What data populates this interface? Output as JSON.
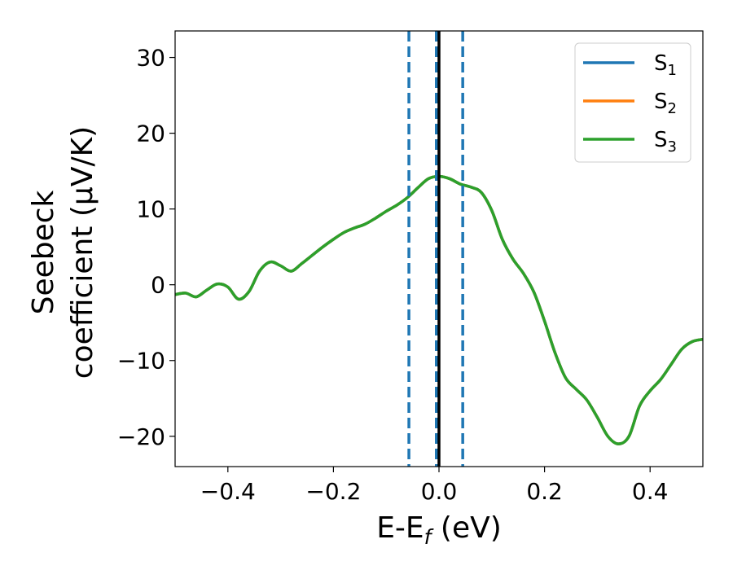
{
  "chart_data": {
    "type": "line",
    "xlabel": {
      "text": "E-E",
      "sub": "f",
      "suffix": " (eV)"
    },
    "ylabel": {
      "line1": "Seebeck",
      "line2": "coefficient  (μV/K)"
    },
    "xlim": [
      -0.5,
      0.5
    ],
    "ylim": [
      -24,
      33.5
    ],
    "xticks": [
      -0.4,
      -0.2,
      0.0,
      0.2,
      0.4
    ],
    "xtick_labels": [
      "−0.4",
      "−0.2",
      "0.0",
      "0.2",
      "0.4"
    ],
    "yticks": [
      30,
      20,
      10,
      0,
      -10,
      -20
    ],
    "ytick_labels": [
      "30",
      "20",
      "10",
      "0",
      "−10",
      "−20"
    ],
    "grid": false,
    "legend_position": "top-right",
    "x": [
      -0.5,
      -0.48,
      -0.46,
      -0.44,
      -0.42,
      -0.4,
      -0.38,
      -0.36,
      -0.34,
      -0.32,
      -0.3,
      -0.28,
      -0.26,
      -0.24,
      -0.22,
      -0.2,
      -0.18,
      -0.16,
      -0.14,
      -0.12,
      -0.1,
      -0.08,
      -0.06,
      -0.04,
      -0.02,
      0.0,
      0.02,
      0.04,
      0.06,
      0.08,
      0.1,
      0.12,
      0.14,
      0.16,
      0.18,
      0.2,
      0.22,
      0.24,
      0.26,
      0.28,
      0.3,
      0.32,
      0.34,
      0.36,
      0.38,
      0.4,
      0.42,
      0.44,
      0.46,
      0.48,
      0.5
    ],
    "series": [
      {
        "name": "S",
        "sub": "1",
        "color": "#1f77b4",
        "values": [
          -1.3,
          -1.1,
          -1.6,
          -0.7,
          0.1,
          -0.3,
          -1.9,
          -0.9,
          1.8,
          3.0,
          2.5,
          1.8,
          2.8,
          3.9,
          5.0,
          6.0,
          6.9,
          7.5,
          8.0,
          8.8,
          9.7,
          10.5,
          11.5,
          12.8,
          14.0,
          14.3,
          14.0,
          13.3,
          12.9,
          12.2,
          9.8,
          6.0,
          3.4,
          1.5,
          -1.0,
          -4.8,
          -9.0,
          -12.3,
          -13.8,
          -15.2,
          -17.5,
          -20.0,
          -21.0,
          -20.0,
          -16.0,
          -14.0,
          -12.5,
          -10.5,
          -8.5,
          -7.5,
          -7.2
        ]
      },
      {
        "name": "S",
        "sub": "2",
        "color": "#ff7f0e",
        "values": [
          -1.3,
          -1.1,
          -1.6,
          -0.7,
          0.1,
          -0.3,
          -1.9,
          -0.9,
          1.8,
          3.0,
          2.5,
          1.8,
          2.8,
          3.9,
          5.0,
          6.0,
          6.9,
          7.5,
          8.0,
          8.8,
          9.7,
          10.5,
          11.5,
          12.8,
          14.0,
          14.3,
          14.0,
          13.3,
          12.9,
          12.2,
          9.8,
          6.0,
          3.4,
          1.5,
          -1.0,
          -4.8,
          -9.0,
          -12.3,
          -13.8,
          -15.2,
          -17.5,
          -20.0,
          -21.0,
          -20.0,
          -16.0,
          -14.0,
          -12.5,
          -10.5,
          -8.5,
          -7.5,
          -7.2
        ]
      },
      {
        "name": "S",
        "sub": "3",
        "color": "#2ca02c",
        "values": [
          -1.3,
          -1.1,
          -1.6,
          -0.7,
          0.1,
          -0.3,
          -1.9,
          -0.9,
          1.8,
          3.0,
          2.5,
          1.8,
          2.8,
          3.9,
          5.0,
          6.0,
          6.9,
          7.5,
          8.0,
          8.8,
          9.7,
          10.5,
          11.5,
          12.8,
          14.0,
          14.3,
          14.0,
          13.3,
          12.9,
          12.2,
          9.8,
          6.0,
          3.4,
          1.5,
          -1.0,
          -4.8,
          -9.0,
          -12.3,
          -13.8,
          -15.2,
          -17.5,
          -20.0,
          -21.0,
          -20.0,
          -16.0,
          -14.0,
          -12.5,
          -10.5,
          -8.5,
          -7.5,
          -7.2
        ]
      }
    ],
    "vlines": [
      {
        "x": -0.057,
        "style": "dashed",
        "color": "#1f77b4"
      },
      {
        "x": -0.005,
        "style": "dashed",
        "color": "#1f77b4"
      },
      {
        "x": 0.045,
        "style": "dashed",
        "color": "#1f77b4"
      },
      {
        "x": 0.0,
        "style": "solid",
        "color": "#000000"
      }
    ]
  }
}
